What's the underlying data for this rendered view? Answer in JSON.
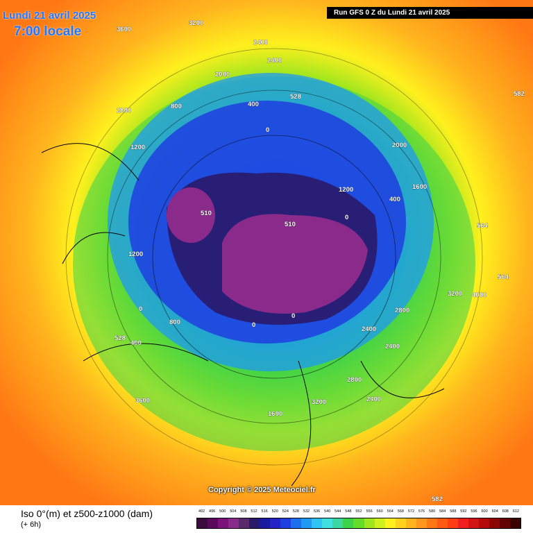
{
  "header": {
    "date_label": "Lundi 21 avril 2025",
    "time_label": "7:00 locale",
    "run_label": "Run GFS 0 Z du Lundi 21 avril 2025"
  },
  "copyright": "Copyright © 2025 Meteociel.fr",
  "legend": {
    "title": "Iso 0°(m) et z500-z1000 (dam)",
    "step": "(+ 6h)",
    "ticks": [
      "492",
      "496",
      "500",
      "504",
      "508",
      "512",
      "516",
      "520",
      "524",
      "528",
      "532",
      "536",
      "540",
      "544",
      "548",
      "552",
      "556",
      "560",
      "564",
      "568",
      "572",
      "576",
      "580",
      "584",
      "588",
      "592",
      "596",
      "600",
      "604",
      "608",
      "612"
    ],
    "colors": [
      "#3c0a3c",
      "#5a0a5a",
      "#7a137a",
      "#8a2a8a",
      "#5a2a6a",
      "#2a1a6a",
      "#1a1aa0",
      "#2323c8",
      "#1f3ee0",
      "#1f6ef0",
      "#1e9af5",
      "#2ec4f5",
      "#40e0e0",
      "#3cd6a0",
      "#3cd24a",
      "#64dc28",
      "#a0e61e",
      "#d2f01e",
      "#fff01e",
      "#ffd21e",
      "#ffb41e",
      "#ff961e",
      "#ff7814",
      "#ff5a14",
      "#ff3c14",
      "#f01e1e",
      "#d21414",
      "#b40a0a",
      "#8c0505",
      "#640303",
      "#3c0000"
    ]
  },
  "map_labels": [
    "3600",
    "3200",
    "2400",
    "2400",
    "2000",
    "2800",
    "1200",
    "800",
    "400",
    "0",
    "0",
    "528",
    "510",
    "510",
    "0",
    "1200",
    "1600",
    "2000",
    "2800",
    "3200",
    "4000",
    "3600",
    "2400",
    "2400",
    "2800",
    "3200",
    "2400",
    "1600",
    "1200",
    "0",
    "400",
    "582",
    "582",
    "564",
    "564",
    "0",
    "400",
    "528",
    "800"
  ]
}
